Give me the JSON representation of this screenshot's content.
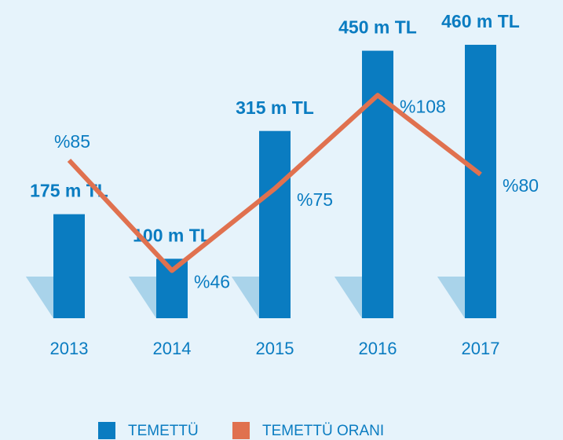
{
  "chart_data": {
    "type": "bar-line",
    "categories": [
      "2013",
      "2014",
      "2015",
      "2016",
      "2017"
    ],
    "series": [
      {
        "name": "TEMETTÜ",
        "color": "#0a7cc1",
        "values": [
          175,
          100,
          315,
          450,
          460
        ],
        "value_labels": [
          "175 m TL",
          "100 m TL",
          "315 m TL",
          "450 m TL",
          "460 m TL"
        ]
      },
      {
        "name": "TEMETTÜ ORANI",
        "color": "#e0714f",
        "values": [
          85,
          46,
          75,
          108,
          80
        ],
        "value_labels": [
          "%85",
          "%46",
          "%75",
          "%108",
          "%80"
        ]
      }
    ]
  }
}
